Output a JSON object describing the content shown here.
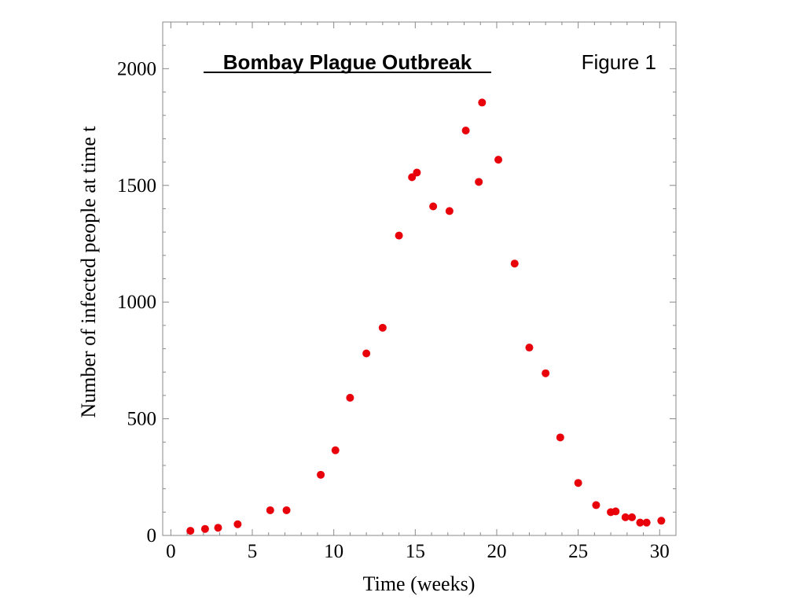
{
  "chart_data": {
    "type": "scatter",
    "title": "Bombay Plague Outbreak",
    "annotation": "Figure 1",
    "xlabel": "Time (weeks)",
    "ylabel": "Number of infected people at time t",
    "xlim": [
      -0.5,
      31
    ],
    "ylim": [
      0,
      2200
    ],
    "xticks": [
      0,
      5,
      10,
      15,
      20,
      25,
      30
    ],
    "yticks": [
      0,
      500,
      1000,
      1500,
      2000
    ],
    "grid": false,
    "marker_color": "#e8000b",
    "series": [
      {
        "points": [
          {
            "x": 1.2,
            "y": 20
          },
          {
            "x": 2.1,
            "y": 28
          },
          {
            "x": 2.9,
            "y": 33
          },
          {
            "x": 4.1,
            "y": 48
          },
          {
            "x": 6.1,
            "y": 108
          },
          {
            "x": 7.1,
            "y": 108
          },
          {
            "x": 9.2,
            "y": 260
          },
          {
            "x": 10.1,
            "y": 365
          },
          {
            "x": 11.0,
            "y": 590
          },
          {
            "x": 12.0,
            "y": 780
          },
          {
            "x": 13.0,
            "y": 890
          },
          {
            "x": 14.0,
            "y": 1285
          },
          {
            "x": 14.8,
            "y": 1535
          },
          {
            "x": 15.1,
            "y": 1555
          },
          {
            "x": 16.1,
            "y": 1410
          },
          {
            "x": 17.1,
            "y": 1390
          },
          {
            "x": 18.1,
            "y": 1735
          },
          {
            "x": 18.9,
            "y": 1515
          },
          {
            "x": 19.1,
            "y": 1855
          },
          {
            "x": 20.1,
            "y": 1610
          },
          {
            "x": 21.1,
            "y": 1165
          },
          {
            "x": 22.0,
            "y": 805
          },
          {
            "x": 23.0,
            "y": 695
          },
          {
            "x": 23.9,
            "y": 420
          },
          {
            "x": 25.0,
            "y": 225
          },
          {
            "x": 26.1,
            "y": 130
          },
          {
            "x": 27.0,
            "y": 100
          },
          {
            "x": 27.3,
            "y": 103
          },
          {
            "x": 27.9,
            "y": 78
          },
          {
            "x": 28.3,
            "y": 78
          },
          {
            "x": 28.8,
            "y": 55
          },
          {
            "x": 29.2,
            "y": 55
          },
          {
            "x": 30.1,
            "y": 63
          }
        ]
      }
    ]
  }
}
